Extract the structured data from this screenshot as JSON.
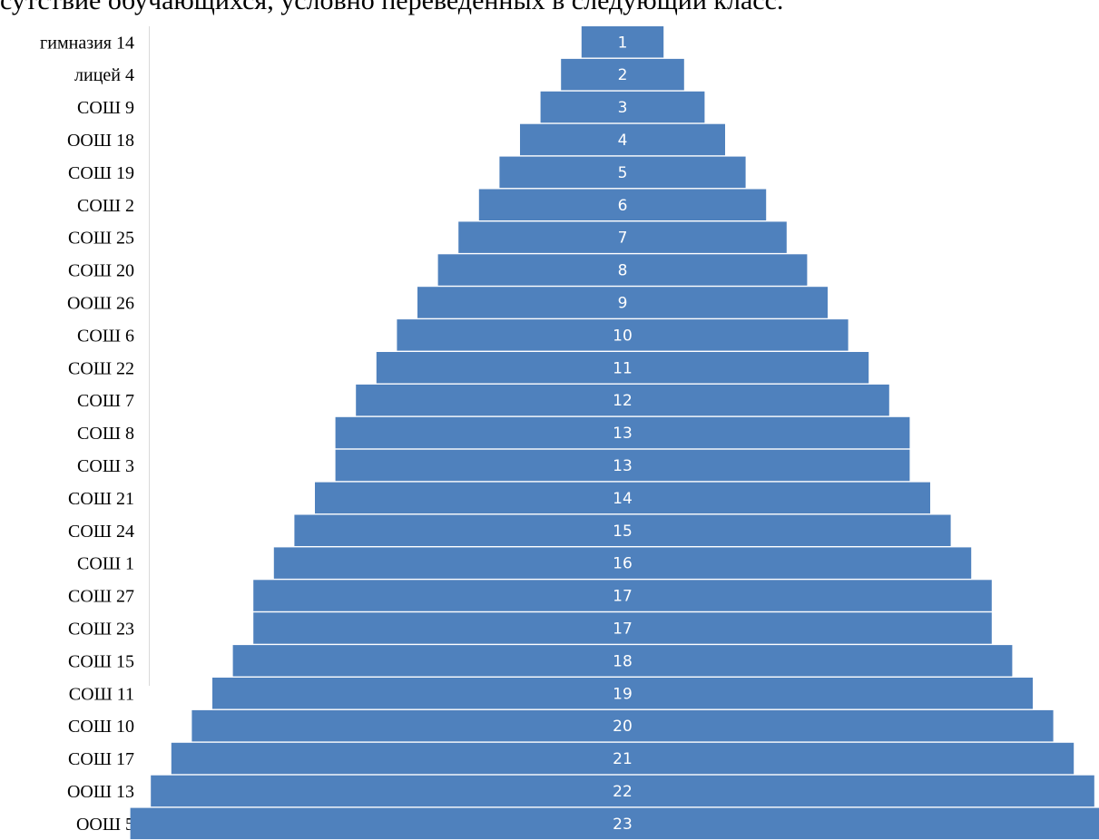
{
  "caption": "сутствие обучающихся, условно переведенных в следующий класс.",
  "chart_data": {
    "type": "bar",
    "orientation": "horizontal-centered",
    "categories": [
      "гимназия 14",
      "лицей 4",
      "СОШ 9",
      "ООШ 18",
      "СОШ 19",
      "СОШ 2",
      "СОШ 25",
      "СОШ 20",
      "ООШ 26",
      "СОШ 6",
      "СОШ 22",
      "СОШ 7",
      "СОШ 8",
      "СОШ 3",
      "СОШ 21",
      "СОШ 24",
      "СОШ 1",
      "СОШ 27",
      "СОШ 23",
      "СОШ 15",
      "СОШ 11",
      "СОШ 10",
      "СОШ 17",
      "ООШ 13",
      "ООШ 5"
    ],
    "values": [
      1,
      2,
      3,
      4,
      5,
      6,
      7,
      8,
      9,
      10,
      11,
      12,
      13,
      13,
      14,
      15,
      16,
      17,
      17,
      18,
      19,
      20,
      21,
      22,
      23
    ],
    "bar_color": "#4f81bd",
    "label_color": "#ffffff",
    "xlim": [
      0,
      23
    ],
    "legend": "none",
    "grid": false
  }
}
